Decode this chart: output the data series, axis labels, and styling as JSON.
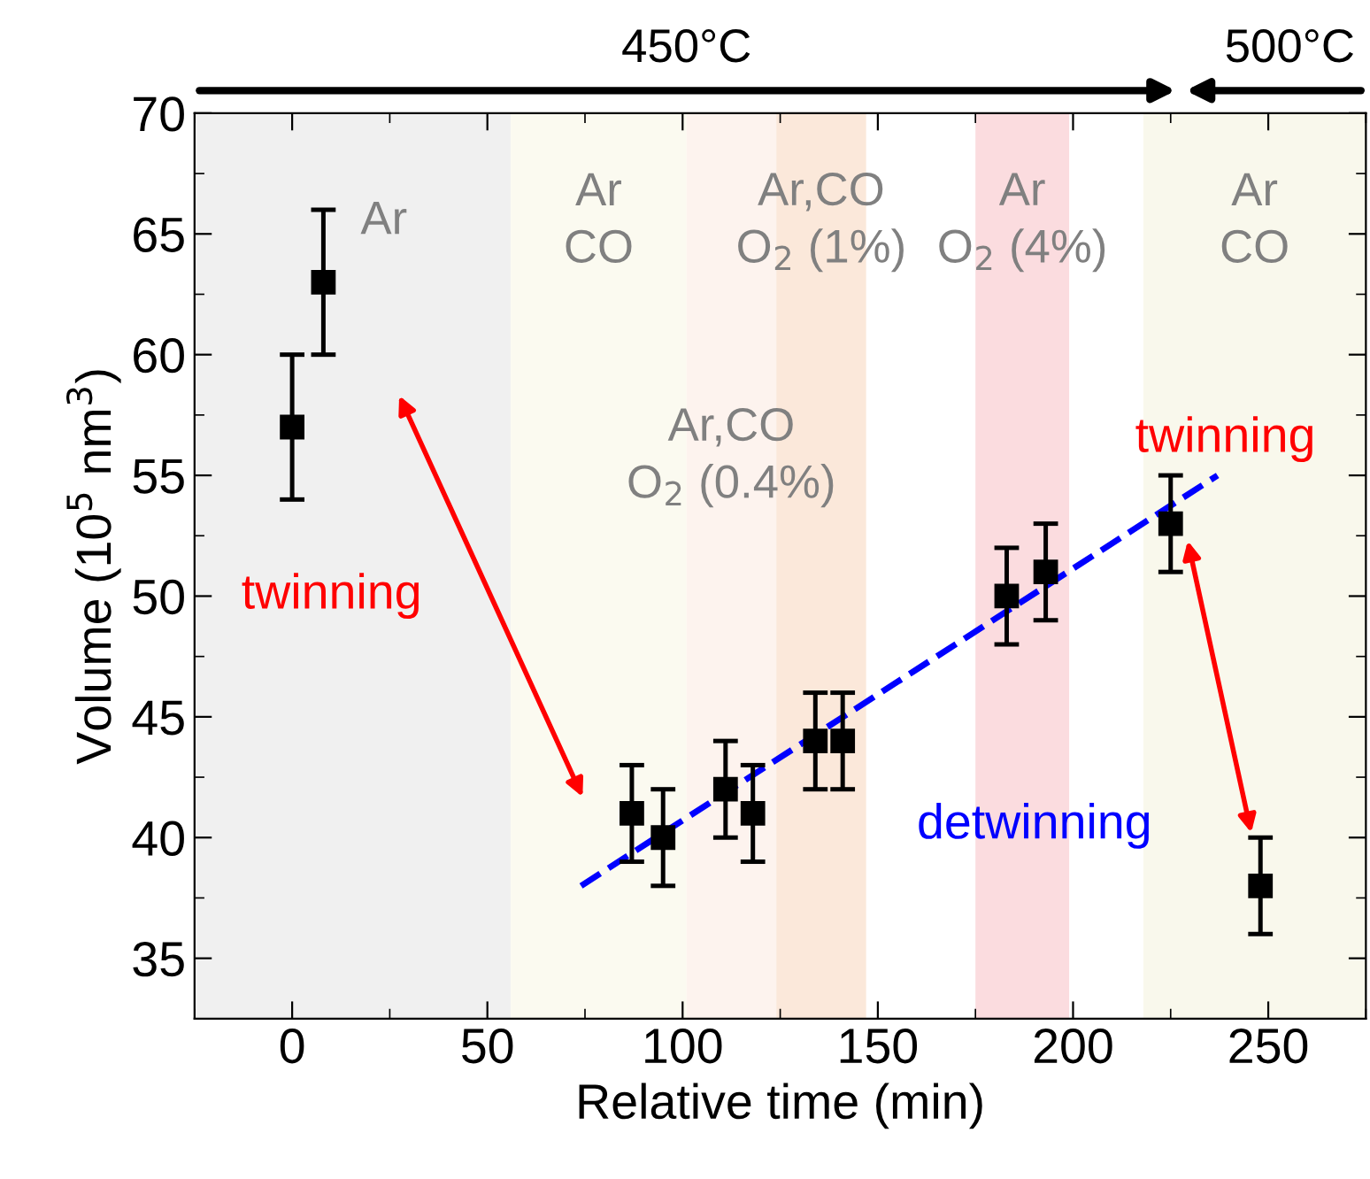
{
  "chart_data": {
    "type": "scatter",
    "xlabel": "Relative time (min)",
    "ylabel": "Volume (10$^{5}$ nm$^{3}$)",
    "xlim": [
      -25,
      275
    ],
    "xticks": [
      0,
      50,
      100,
      150,
      200,
      250
    ],
    "ylim": [
      32.5,
      70
    ],
    "yticks": [
      35,
      40,
      45,
      50,
      55,
      60,
      65,
      70
    ],
    "marker": "square",
    "series": [
      {
        "color": "#000000",
        "x": [
          0,
          8,
          87,
          95,
          111,
          118,
          134,
          141,
          183,
          193,
          225,
          248
        ],
        "values": [
          57,
          63,
          41,
          40,
          42,
          41,
          44,
          44,
          50,
          51,
          53,
          38
        ],
        "errors": [
          3,
          3,
          2,
          2,
          2,
          2,
          2,
          2,
          2,
          2,
          2,
          2
        ]
      },
      {
        "type": "line",
        "marker": "none",
        "line_style": "dashed",
        "color": "#0000ff",
        "x": [
          74,
          237
        ],
        "values": [
          38,
          55
        ]
      }
    ],
    "bands": [
      {
        "axis": "x",
        "from": -25,
        "to": 56,
        "label": "Ar",
        "color": "#f0f0f0"
      },
      {
        "axis": "x",
        "from": 56,
        "to": 101,
        "label": "Ar\nCO",
        "color": "#fbfaf0"
      },
      {
        "axis": "x",
        "from": 101,
        "to": 124,
        "label": "Ar,CO\nO$_{2}$ (0.4%)",
        "color": "#fdf3ee"
      },
      {
        "axis": "x",
        "from": 124,
        "to": 147,
        "label": "Ar,CO\nO$_{2}$ (1%)",
        "color": "#fbe8da"
      },
      {
        "axis": "x",
        "from": 175,
        "to": 199,
        "label": "Ar\nO$_{2}$ (4%)",
        "color": "#fbdcdf"
      },
      {
        "axis": "x",
        "from": 218,
        "to": 275,
        "label": "Ar\nCO",
        "color": "#f9f8ec"
      }
    ],
    "annotations": [
      "twinning",
      "twinning",
      "detwinning",
      "450°C",
      "500°C"
    ]
  }
}
